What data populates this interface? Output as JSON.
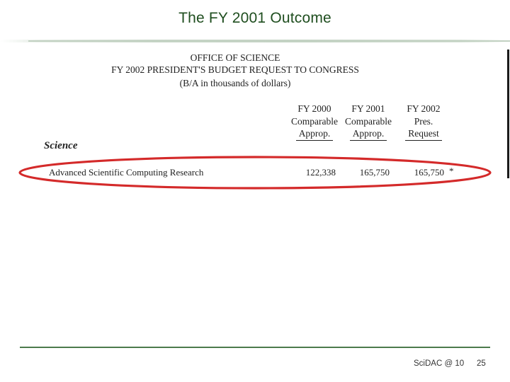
{
  "slide": {
    "title": "The FY 2001 Outcome"
  },
  "document": {
    "heading_line1": "OFFICE OF SCIENCE",
    "heading_line2": "FY 2002 PRESIDENT'S BUDGET REQUEST TO CONGRESS",
    "heading_line3": "(B/A in thousands of dollars)",
    "columns": [
      {
        "line1": "FY 2000",
        "line2": "Comparable",
        "line3": "Approp."
      },
      {
        "line1": "FY 2001",
        "line2": "Comparable",
        "line3": "Approp."
      },
      {
        "line1": "FY 2002",
        "line2": "Pres.",
        "line3": "Request"
      }
    ],
    "section_label": "Science",
    "row": {
      "label": "Advanced Scientific Computing Research",
      "fy2000": "122,338",
      "fy2001": "165,750",
      "fy2002": "165,750",
      "note": "*"
    },
    "highlight_color": "#d42a2a"
  },
  "footer": {
    "left_text": "SciDAC @ 10",
    "page_number": "25"
  },
  "colors": {
    "title": "#1f4e1f",
    "rule": "#4c7a4c",
    "highlight": "#d42a2a"
  }
}
